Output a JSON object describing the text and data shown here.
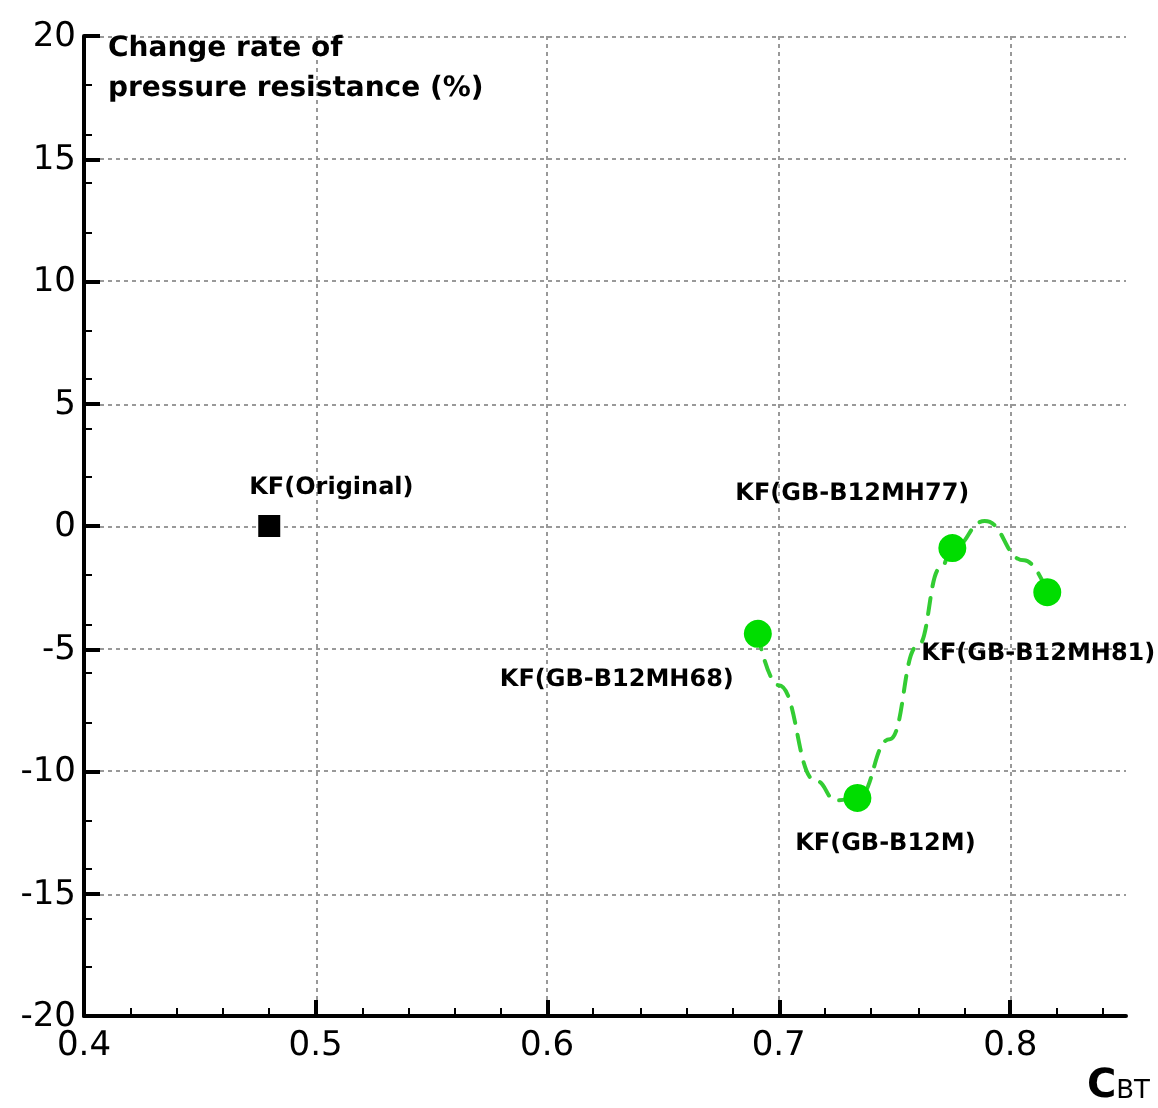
{
  "chart_data": {
    "type": "scatter",
    "xlabel": "C$_{BT}$",
    "ylabel": "Change rate of\npressure resistance (%)",
    "xlim": [
      0.4,
      0.85
    ],
    "xticks": [
      0.4,
      0.5,
      0.6,
      0.7,
      0.8
    ],
    "ylim": [
      -20,
      20
    ],
    "yticks": [
      -20,
      -15,
      -10,
      -5,
      0,
      5,
      10,
      15,
      20
    ],
    "grid": true,
    "series": [
      {
        "type": "line",
        "color": "#33cc33",
        "marker": "none",
        "line_style": "dashed",
        "x": [
          0.691,
          0.7,
          0.716,
          0.725,
          0.734,
          0.748,
          0.76,
          0.77,
          0.775,
          0.789,
          0.806,
          0.816
        ],
        "values": [
          -4.4,
          -6.5,
          -10.4,
          -11.2,
          -11.1,
          -8.7,
          -4.9,
          -1.7,
          -0.9,
          0.2,
          -1.4,
          -2.7
        ]
      },
      {
        "color": "#000000",
        "marker": "square",
        "x": [
          0.48
        ],
        "values": [
          0
        ]
      },
      {
        "color": "#00dd00",
        "marker": "circle",
        "x": [
          0.691,
          0.734,
          0.775,
          0.816
        ],
        "values": [
          -4.4,
          -11.1,
          -0.9,
          -2.7
        ]
      }
    ],
    "annotations": [
      {
        "text": "KF(Original)",
        "x": 0.48,
        "y": 0
      },
      {
        "text": "KF(GB-B12MH68)",
        "x": 0.691,
        "y": -4.4
      },
      {
        "text": "KF(GB-B12M)",
        "x": 0.734,
        "y": -11.1
      },
      {
        "text": "KF(GB-B12MH77)",
        "x": 0.775,
        "y": -0.9
      },
      {
        "text": "KF(GB-B12MH81)",
        "x": 0.816,
        "y": -2.7
      }
    ]
  }
}
